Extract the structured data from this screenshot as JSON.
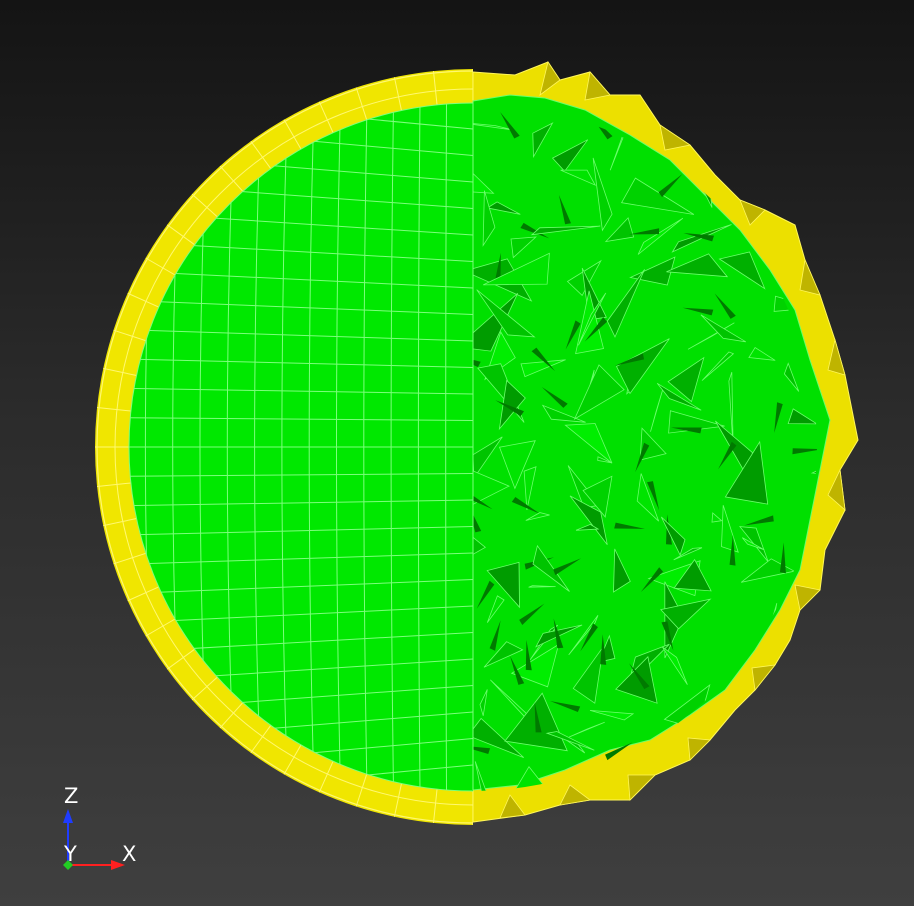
{
  "viewport": {
    "background_top": "#141414",
    "background_bottom": "#3f3f3f"
  },
  "model": {
    "shell_color": "#f0e600",
    "shell_shadow_color": "#c7bd00",
    "face_color": "#00e800",
    "face_dark_color": "#00b400",
    "mesh_line_color": "#7dff7d"
  },
  "triad": {
    "z_label": "Z",
    "y_label": "Y",
    "x_label": "X",
    "z_color": "#1f3cff",
    "x_color": "#ff2020",
    "y_color": "#22cc22"
  }
}
